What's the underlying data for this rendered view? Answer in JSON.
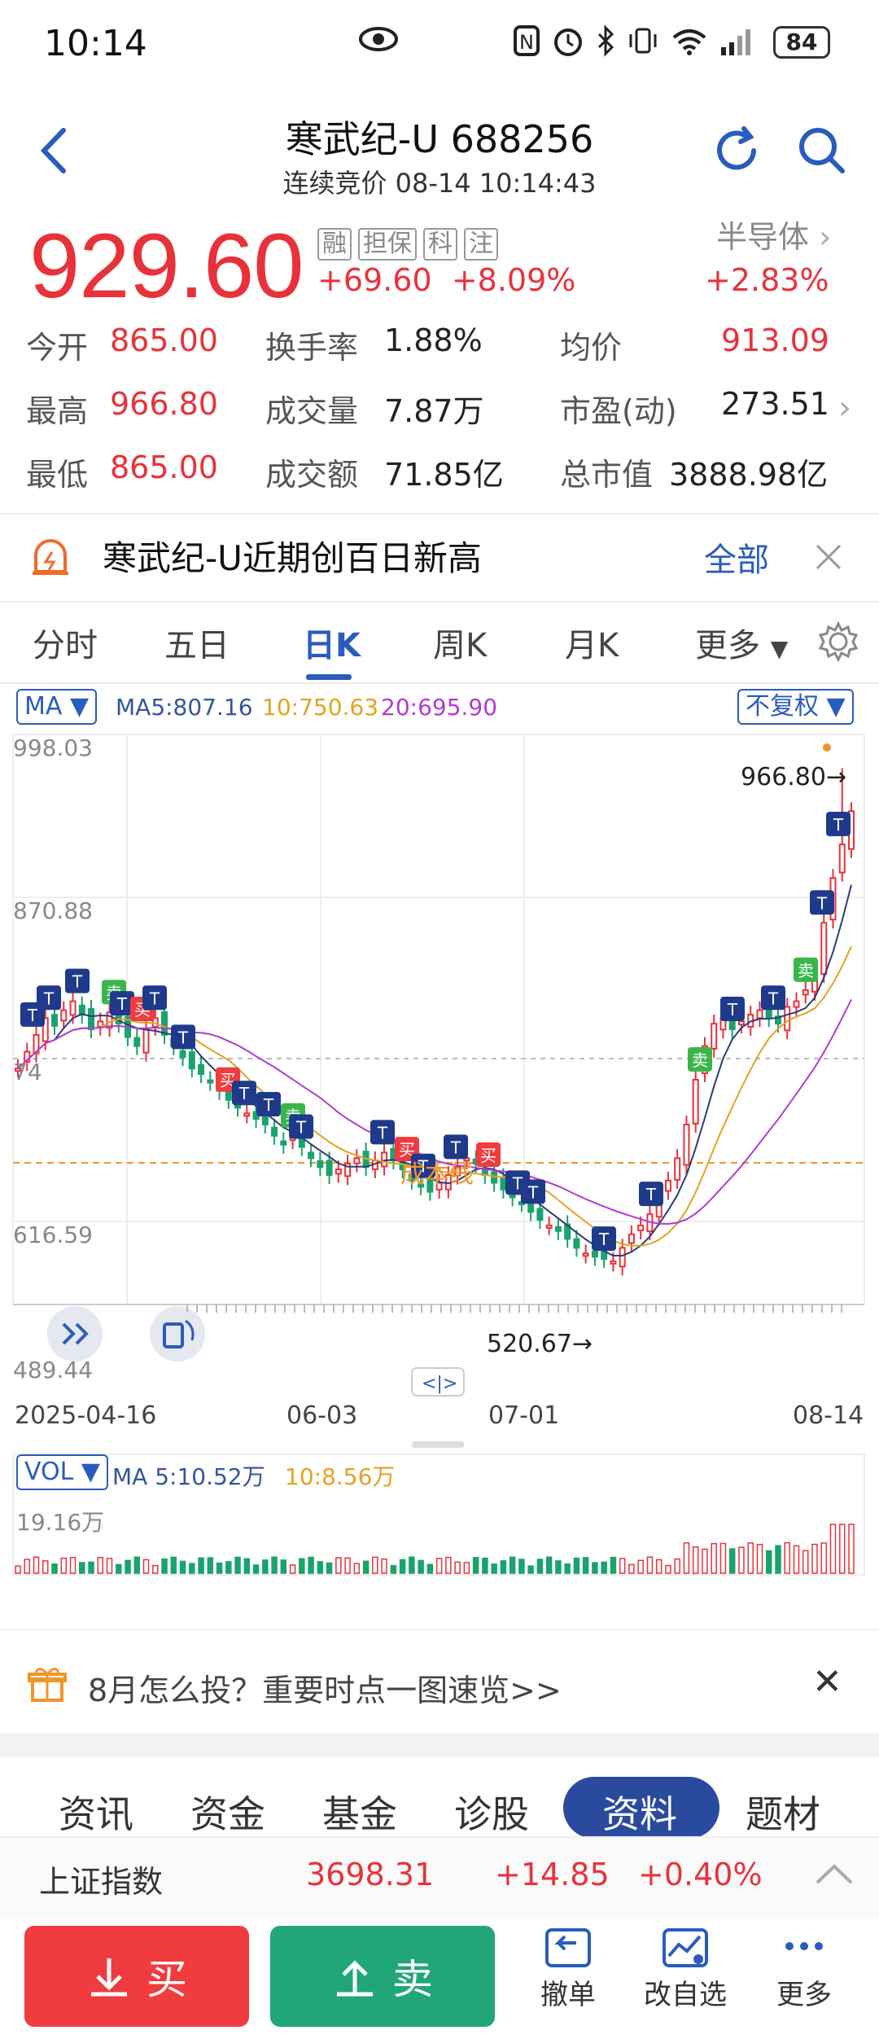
{
  "status": {
    "time": "10:14",
    "battery": "84"
  },
  "header": {
    "title": "寒武纪-U 688256",
    "subtitle": "连续竞价 08-14 10:14:43"
  },
  "quote": {
    "price": "929.60",
    "change": "+69.60",
    "change_pct": "+8.09%",
    "tags": [
      "融",
      "担保",
      "科",
      "注"
    ],
    "sector": "半导体",
    "sector_chg": "+2.83%"
  },
  "stats": {
    "open_label": "今开",
    "open": "865.00",
    "high_label": "最高",
    "high": "966.80",
    "low_label": "最低",
    "low": "865.00",
    "turnover_label": "换手率",
    "turnover": "1.88%",
    "volume_label": "成交量",
    "volume": "7.87万",
    "amount_label": "成交额",
    "amount": "71.85亿",
    "avg_label": "均价",
    "avg": "913.09",
    "pe_label": "市盈(动)",
    "pe": "273.51",
    "mktcap_label": "总市值",
    "mktcap": "3888.98亿"
  },
  "alert": {
    "text": "寒武纪-U近期创百日新高",
    "all": "全部"
  },
  "ktabs": [
    "分时",
    "五日",
    "日K",
    "周K",
    "月K",
    "更多"
  ],
  "ma": {
    "selector": "MA",
    "ma5": "MA5:807.16",
    "ma10": "10:750.63",
    "ma20": "20:695.90",
    "adjust": "不复权"
  },
  "chart": {
    "y_top": "998.03",
    "y_mid": "870.88",
    "y_lo": "616.59",
    "y_bottom": "489.44",
    "y_partial": "74",
    "high_label": "966.80→",
    "low_label": "520.67→",
    "cost_label": "成本线",
    "dates": [
      "2025-04-16",
      "06-03",
      "07-01",
      "08-14"
    ]
  },
  "vol": {
    "selector": "VOL",
    "ma5": "MA 5:10.52万",
    "ma10": "10:8.56万",
    "max": "19.16万"
  },
  "promo": {
    "text": "8月怎么投？重要时点一图速览>>"
  },
  "btabs": [
    "资讯",
    "资金",
    "基金",
    "诊股",
    "资料",
    "题材"
  ],
  "index": {
    "name": "上证指数",
    "value": "3698.31",
    "change": "+14.85",
    "pct": "+0.40%"
  },
  "actions": {
    "buy": "买",
    "sell": "卖",
    "cancel": "撤单",
    "watch": "改自选",
    "more": "更多"
  },
  "chart_data": {
    "type": "candlestick",
    "x_range": [
      "2025-04-16",
      "2025-08-14"
    ],
    "ylim": [
      489.44,
      998.03
    ],
    "annotations": [
      {
        "label": "966.80",
        "type": "high"
      },
      {
        "label": "520.67",
        "type": "low"
      }
    ],
    "series": [
      {
        "name": "MA5",
        "value": 807.16
      },
      {
        "name": "MA10",
        "value": 750.63
      },
      {
        "name": "MA20",
        "value": 695.9
      }
    ]
  }
}
